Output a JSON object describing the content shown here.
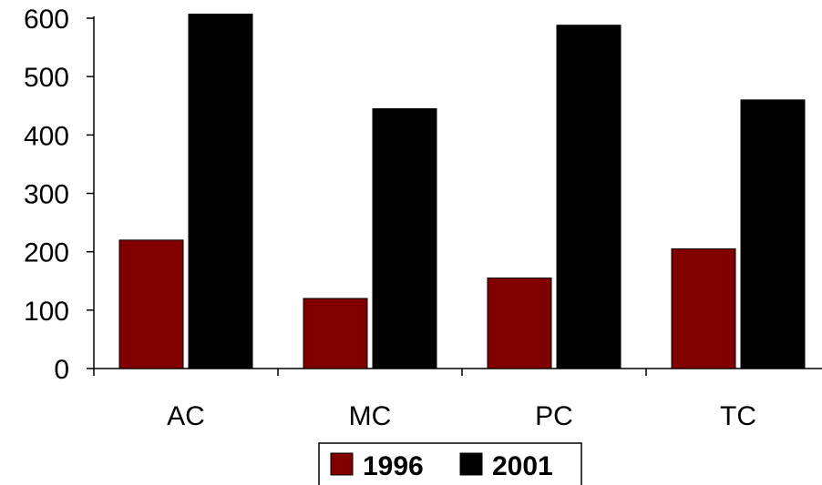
{
  "chart_data": {
    "type": "bar",
    "title": "",
    "xlabel": "",
    "ylabel": "",
    "categories": [
      "AC",
      "MC",
      "PC",
      "TC"
    ],
    "series": [
      {
        "name": "1996",
        "values": [
          220,
          120,
          155,
          205
        ],
        "color": "#800000"
      },
      {
        "name": "2001",
        "values": [
          607,
          445,
          588,
          460
        ],
        "color": "#000000"
      }
    ],
    "ylim": [
      0,
      600
    ],
    "yticks": [
      0,
      100,
      200,
      300,
      400,
      500,
      600
    ],
    "grid": false,
    "legend_position": "bottom-center"
  }
}
